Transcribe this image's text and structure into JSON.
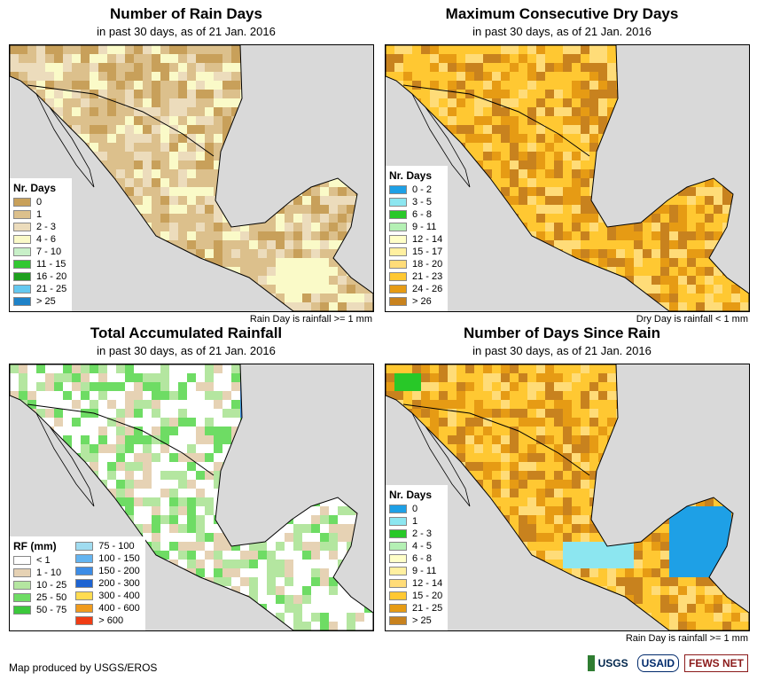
{
  "panels": [
    {
      "title": "Number of Rain Days",
      "subtitle": "in past 30 days, as of 21 Jan. 2016",
      "note": "Rain Day is rainfall >= 1 mm",
      "legend_title": "Nr. Days",
      "legend": [
        {
          "label": "0",
          "color": "#c8a05a"
        },
        {
          "label": "1",
          "color": "#dcc08c"
        },
        {
          "label": "2 - 3",
          "color": "#ecdcbc"
        },
        {
          "label": "4 - 6",
          "color": "#fafac8"
        },
        {
          "label": "7 - 10",
          "color": "#c8f0c8"
        },
        {
          "label": "11 - 15",
          "color": "#32c832"
        },
        {
          "label": "16 - 20",
          "color": "#1ea01e"
        },
        {
          "label": "21 - 25",
          "color": "#64c8f0"
        },
        {
          "label": "> 25",
          "color": "#1e82c8"
        }
      ]
    },
    {
      "title": "Maximum Consecutive Dry Days",
      "subtitle": "in past 30 days, as of 21 Jan. 2016",
      "note": "Dry Day is rainfall < 1 mm",
      "legend_title": "Nr. Days",
      "legend": [
        {
          "label": "0 - 2",
          "color": "#1ea0e6"
        },
        {
          "label": "3 - 5",
          "color": "#8ce6f0"
        },
        {
          "label": "6 - 8",
          "color": "#28c828"
        },
        {
          "label": "9 - 11",
          "color": "#b4f0b4"
        },
        {
          "label": "12 - 14",
          "color": "#ffffc8"
        },
        {
          "label": "15 - 17",
          "color": "#fff0a0"
        },
        {
          "label": "18 - 20",
          "color": "#ffdc78"
        },
        {
          "label": "21 - 23",
          "color": "#ffc832"
        },
        {
          "label": "24 - 26",
          "color": "#e69b14"
        },
        {
          "label": "> 26",
          "color": "#c8821e"
        }
      ]
    },
    {
      "title": "Total Accumulated Rainfall",
      "subtitle": "in past 30 days, as of 21 Jan. 2016",
      "note": "",
      "legend_title": "RF (mm)",
      "legend": [
        {
          "label": "< 1",
          "color": "#ffffff"
        },
        {
          "label": "1 - 10",
          "color": "#e6d2b4"
        },
        {
          "label": "10 - 25",
          "color": "#b4e6a0"
        },
        {
          "label": "25 - 50",
          "color": "#6edc64"
        },
        {
          "label": "50 - 75",
          "color": "#3cc83c"
        }
      ],
      "legend2": [
        {
          "label": "75 - 100",
          "color": "#a0dcf0"
        },
        {
          "label": "100 - 150",
          "color": "#64b4f0"
        },
        {
          "label": "150 - 200",
          "color": "#3c8ce6"
        },
        {
          "label": "200 - 300",
          "color": "#1e64d2"
        },
        {
          "label": "300 - 400",
          "color": "#ffdc50"
        },
        {
          "label": "400 - 600",
          "color": "#f09b1e"
        },
        {
          "label": "> 600",
          "color": "#f03c14"
        }
      ]
    },
    {
      "title": "Number of Days Since Rain",
      "subtitle": "in past 30 days, as of 21 Jan. 2016",
      "note": "Rain Day is rainfall >= 1 mm",
      "legend_title": "Nr. Days",
      "legend": [
        {
          "label": "0",
          "color": "#1ea0e6"
        },
        {
          "label": "1",
          "color": "#8ce6f0"
        },
        {
          "label": "2 - 3",
          "color": "#28c828"
        },
        {
          "label": "4 - 5",
          "color": "#b4f0b4"
        },
        {
          "label": "6 - 8",
          "color": "#ffffc8"
        },
        {
          "label": "9 - 11",
          "color": "#fff0a0"
        },
        {
          "label": "12 - 14",
          "color": "#ffdc78"
        },
        {
          "label": "15 - 20",
          "color": "#ffc832"
        },
        {
          "label": "21 - 25",
          "color": "#e69b14"
        },
        {
          "label": "> 25",
          "color": "#c8821e"
        }
      ]
    }
  ],
  "footer": "Map produced by USGS/EROS",
  "logos": [
    "USGS",
    "USAID",
    "FEWS NET"
  ],
  "colors": {
    "ocean": "#d9d9d9",
    "border": "#000000"
  }
}
